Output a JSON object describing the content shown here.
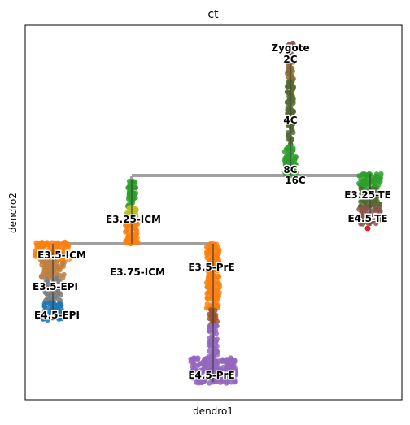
{
  "chart_data": {
    "type": "scatter",
    "title": "ct",
    "xlabel": "dendro1",
    "ylabel": "dendro2",
    "grid": false,
    "legend": "none",
    "ticks": false,
    "tree_edges": [
      {
        "from": "16C",
        "to": "Zygote"
      },
      {
        "from": "E3.25-ICM",
        "to": "E3.25-TE"
      },
      {
        "from": "E3.25-ICM",
        "to": "E3.75-ICM"
      },
      {
        "from": "E3.5-ICM",
        "to": "E3.5-PrE"
      },
      {
        "from": "E3.5-PrE",
        "to": "E4.5-PrE"
      },
      {
        "from": "E3.5-ICM",
        "to": "E4.5-EPI"
      },
      {
        "from": "E3.25-TE",
        "to": "E4.5-TE"
      }
    ],
    "nodes": [
      {
        "label": "Zygote",
        "color": "#8c564b"
      },
      {
        "label": "2C",
        "color": "#8c6d31"
      },
      {
        "label": "4C",
        "color": "#556b2f"
      },
      {
        "label": "8C",
        "color": "#2ca02c"
      },
      {
        "label": "16C",
        "color": "#2ca02c"
      },
      {
        "label": "E3.25-TE",
        "color": "#2ca02c"
      },
      {
        "label": "E4.5-TE",
        "color": "#d62728"
      },
      {
        "label": "E3.25-ICM",
        "color": "#bcbd22"
      },
      {
        "label": "E3.75-ICM",
        "color": "#ff7f0e"
      },
      {
        "label": "E3.5-ICM",
        "color": "#ff7f0e"
      },
      {
        "label": "E3.5-EPI",
        "color": "#7f7f7f"
      },
      {
        "label": "E4.5-EPI",
        "color": "#1f77b4"
      },
      {
        "label": "E3.5-PrE",
        "color": "#ff7f0e"
      },
      {
        "label": "E4.5-PrE",
        "color": "#9467bd"
      }
    ]
  }
}
